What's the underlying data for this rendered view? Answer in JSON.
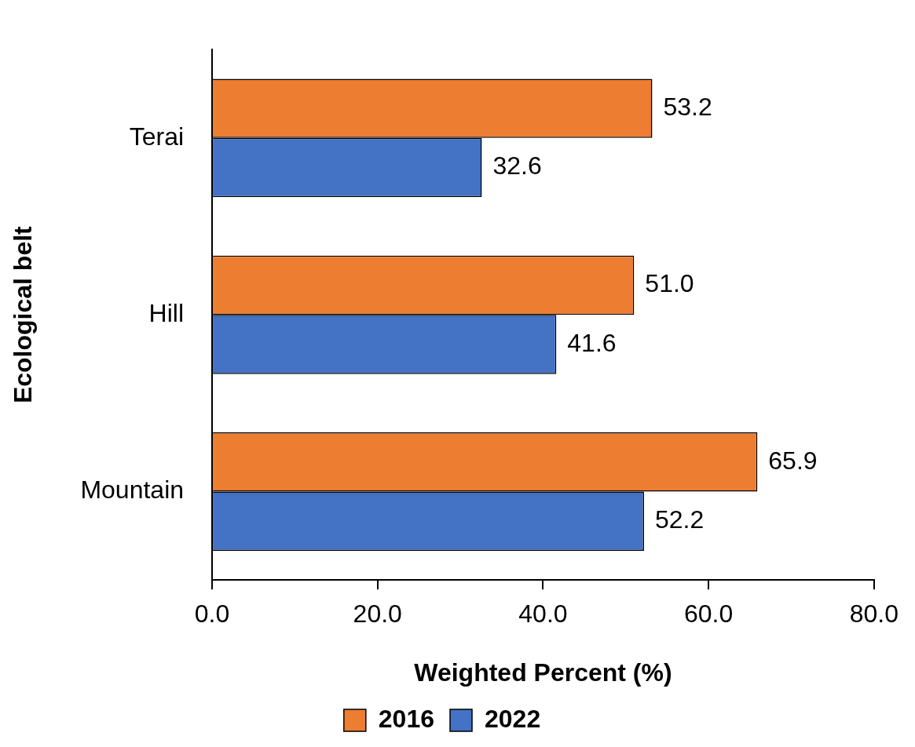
{
  "chart_data": {
    "type": "bar",
    "orientation": "horizontal",
    "xlabel": "Weighted Percent (%)",
    "ylabel": "Ecological belt",
    "categories": [
      "Terai",
      "Hill",
      "Mountain"
    ],
    "series": [
      {
        "name": "2016",
        "color": "#ed7d31",
        "values": [
          53.2,
          51.0,
          65.9
        ],
        "value_labels": [
          "53.2",
          "51.0",
          "65.9"
        ]
      },
      {
        "name": "2022",
        "color": "#4472c4",
        "values": [
          32.6,
          41.6,
          52.2
        ],
        "value_labels": [
          "32.6",
          "41.6",
          "52.2"
        ]
      }
    ],
    "xlim": [
      0,
      80
    ],
    "xticks": [
      {
        "value": 0,
        "label": "0.0"
      },
      {
        "value": 20,
        "label": "20.0"
      },
      {
        "value": 40,
        "label": "40.0"
      },
      {
        "value": 60,
        "label": "60.0"
      },
      {
        "value": 80,
        "label": "80.0"
      }
    ],
    "legend": "bottom"
  }
}
